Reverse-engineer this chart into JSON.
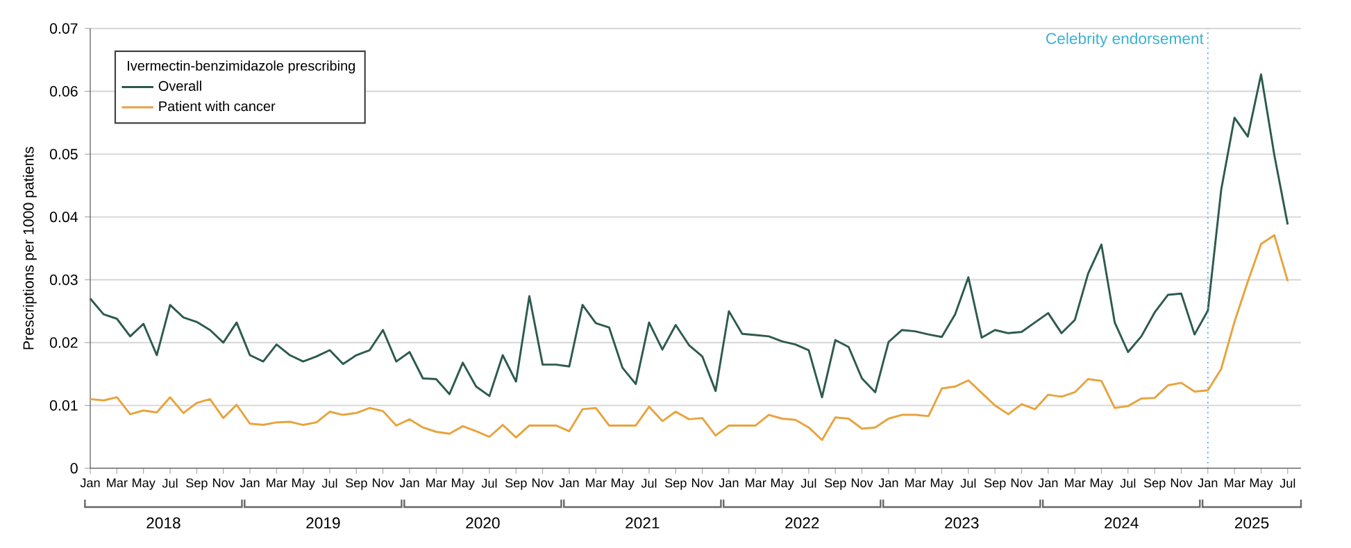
{
  "chart_data": {
    "type": "line",
    "x": [
      "2018-01",
      "2018-02",
      "2018-03",
      "2018-04",
      "2018-05",
      "2018-06",
      "2018-07",
      "2018-08",
      "2018-09",
      "2018-10",
      "2018-11",
      "2018-12",
      "2019-01",
      "2019-02",
      "2019-03",
      "2019-04",
      "2019-05",
      "2019-06",
      "2019-07",
      "2019-08",
      "2019-09",
      "2019-10",
      "2019-11",
      "2019-12",
      "2020-01",
      "2020-02",
      "2020-03",
      "2020-04",
      "2020-05",
      "2020-06",
      "2020-07",
      "2020-08",
      "2020-09",
      "2020-10",
      "2020-11",
      "2020-12",
      "2021-01",
      "2021-02",
      "2021-03",
      "2021-04",
      "2021-05",
      "2021-06",
      "2021-07",
      "2021-08",
      "2021-09",
      "2021-10",
      "2021-11",
      "2021-12",
      "2022-01",
      "2022-02",
      "2022-03",
      "2022-04",
      "2022-05",
      "2022-06",
      "2022-07",
      "2022-08",
      "2022-09",
      "2022-10",
      "2022-11",
      "2022-12",
      "2023-01",
      "2023-02",
      "2023-03",
      "2023-04",
      "2023-05",
      "2023-06",
      "2023-07",
      "2023-08",
      "2023-09",
      "2023-10",
      "2023-11",
      "2023-12",
      "2024-01",
      "2024-02",
      "2024-03",
      "2024-04",
      "2024-05",
      "2024-06",
      "2024-07",
      "2024-08",
      "2024-09",
      "2024-10",
      "2024-11",
      "2024-12",
      "2025-01",
      "2025-02",
      "2025-03",
      "2025-04",
      "2025-05",
      "2025-06",
      "2025-07"
    ],
    "series": [
      {
        "name": "Overall",
        "color": "#2d5a4f",
        "values": [
          0.027,
          0.0245,
          0.0238,
          0.021,
          0.023,
          0.018,
          0.026,
          0.024,
          0.0233,
          0.022,
          0.02,
          0.0232,
          0.018,
          0.017,
          0.0197,
          0.018,
          0.017,
          0.0178,
          0.0188,
          0.0166,
          0.018,
          0.0188,
          0.022,
          0.017,
          0.0185,
          0.0143,
          0.0142,
          0.0118,
          0.0168,
          0.013,
          0.0115,
          0.018,
          0.0138,
          0.0274,
          0.0165,
          0.0165,
          0.0162,
          0.026,
          0.0231,
          0.0224,
          0.016,
          0.0134,
          0.0232,
          0.0189,
          0.0228,
          0.0196,
          0.0178,
          0.0123,
          0.025,
          0.0214,
          0.0212,
          0.021,
          0.0202,
          0.0197,
          0.0188,
          0.0113,
          0.0204,
          0.0193,
          0.0143,
          0.0121,
          0.0201,
          0.022,
          0.0218,
          0.0213,
          0.0209,
          0.0245,
          0.0304,
          0.0208,
          0.022,
          0.0215,
          0.0217,
          0.0232,
          0.0247,
          0.0215,
          0.0236,
          0.031,
          0.0356,
          0.0232,
          0.0185,
          0.021,
          0.0248,
          0.0276,
          0.0278,
          0.0213,
          0.0251,
          0.0443,
          0.0558,
          0.0528,
          0.0627,
          0.0498,
          0.0388
        ]
      },
      {
        "name": "Patient with cancer",
        "color": "#e8a33d",
        "values": [
          0.011,
          0.0108,
          0.0113,
          0.0086,
          0.0092,
          0.0089,
          0.0113,
          0.0088,
          0.0104,
          0.011,
          0.008,
          0.0101,
          0.0071,
          0.0069,
          0.0073,
          0.0074,
          0.0069,
          0.0073,
          0.009,
          0.0085,
          0.0088,
          0.0096,
          0.0091,
          0.0068,
          0.0078,
          0.0065,
          0.0058,
          0.0055,
          0.0067,
          0.0059,
          0.005,
          0.0069,
          0.0049,
          0.0068,
          0.0068,
          0.0068,
          0.0059,
          0.0094,
          0.0096,
          0.0068,
          0.0068,
          0.0068,
          0.0098,
          0.0075,
          0.009,
          0.0078,
          0.008,
          0.0052,
          0.0068,
          0.0068,
          0.0068,
          0.0085,
          0.0079,
          0.0077,
          0.0065,
          0.0045,
          0.0081,
          0.0079,
          0.0063,
          0.0065,
          0.0079,
          0.0085,
          0.0085,
          0.0083,
          0.0127,
          0.013,
          0.014,
          0.012,
          0.01,
          0.0086,
          0.0102,
          0.0094,
          0.0117,
          0.0114,
          0.0121,
          0.0142,
          0.0139,
          0.0096,
          0.0099,
          0.0111,
          0.0112,
          0.0132,
          0.0136,
          0.0122,
          0.0124,
          0.0158,
          0.0233,
          0.0297,
          0.0357,
          0.0371,
          0.0298
        ]
      }
    ],
    "ylabel": "Prescriptions per 1000 patients",
    "legend_title": "Ivermectin-benzimidazole prescribing",
    "legend": "top left",
    "grid": "y",
    "ylim": [
      0,
      0.07
    ],
    "yticks": [
      0,
      0.01,
      0.02,
      0.03,
      0.04,
      0.05,
      0.06,
      0.07
    ],
    "xlim": [
      "2018-01",
      "2025-08"
    ],
    "xticks": [
      {
        "value": "2018-01",
        "label": "Jan"
      },
      {
        "value": "2018-03",
        "label": "Mar"
      },
      {
        "value": "2018-05",
        "label": "May"
      },
      {
        "value": "2018-07",
        "label": "Jul"
      },
      {
        "value": "2018-09",
        "label": "Sep"
      },
      {
        "value": "2018-11",
        "label": "Nov"
      },
      {
        "value": "2019-01",
        "label": "Jan"
      },
      {
        "value": "2019-03",
        "label": "Mar"
      },
      {
        "value": "2019-05",
        "label": "May"
      },
      {
        "value": "2019-07",
        "label": "Jul"
      },
      {
        "value": "2019-09",
        "label": "Sep"
      },
      {
        "value": "2019-11",
        "label": "Nov"
      },
      {
        "value": "2020-01",
        "label": "Jan"
      },
      {
        "value": "2020-03",
        "label": "Mar"
      },
      {
        "value": "2020-05",
        "label": "May"
      },
      {
        "value": "2020-07",
        "label": "Jul"
      },
      {
        "value": "2020-09",
        "label": "Sep"
      },
      {
        "value": "2020-11",
        "label": "Nov"
      },
      {
        "value": "2021-01",
        "label": "Jan"
      },
      {
        "value": "2021-03",
        "label": "Mar"
      },
      {
        "value": "2021-05",
        "label": "May"
      },
      {
        "value": "2021-07",
        "label": "Jul"
      },
      {
        "value": "2021-09",
        "label": "Sep"
      },
      {
        "value": "2021-11",
        "label": "Nov"
      },
      {
        "value": "2022-01",
        "label": "Jan"
      },
      {
        "value": "2022-03",
        "label": "Mar"
      },
      {
        "value": "2022-05",
        "label": "May"
      },
      {
        "value": "2022-07",
        "label": "Jul"
      },
      {
        "value": "2022-09",
        "label": "Sep"
      },
      {
        "value": "2022-11",
        "label": "Nov"
      },
      {
        "value": "2023-01",
        "label": "Jan"
      },
      {
        "value": "2023-03",
        "label": "Mar"
      },
      {
        "value": "2023-05",
        "label": "May"
      },
      {
        "value": "2023-07",
        "label": "Jul"
      },
      {
        "value": "2023-09",
        "label": "Sep"
      },
      {
        "value": "2023-11",
        "label": "Nov"
      },
      {
        "value": "2024-01",
        "label": "Jan"
      },
      {
        "value": "2024-03",
        "label": "Mar"
      },
      {
        "value": "2024-05",
        "label": "May"
      },
      {
        "value": "2024-07",
        "label": "Jul"
      },
      {
        "value": "2024-09",
        "label": "Sep"
      },
      {
        "value": "2024-11",
        "label": "Nov"
      },
      {
        "value": "2025-01",
        "label": "Jan"
      },
      {
        "value": "2025-03",
        "label": "Mar"
      },
      {
        "value": "2025-05",
        "label": "May"
      },
      {
        "value": "2025-07",
        "label": "Jul"
      }
    ],
    "ref_lines": [
      {
        "axis": "x",
        "value": "2025-01",
        "label": "Celebrity endorsement",
        "color": "#3bb0d0",
        "line_style": "dotted"
      }
    ],
    "annotations": [
      "2018",
      "2019",
      "2020",
      "2021",
      "2022",
      "2023",
      "2024",
      "2025"
    ]
  }
}
